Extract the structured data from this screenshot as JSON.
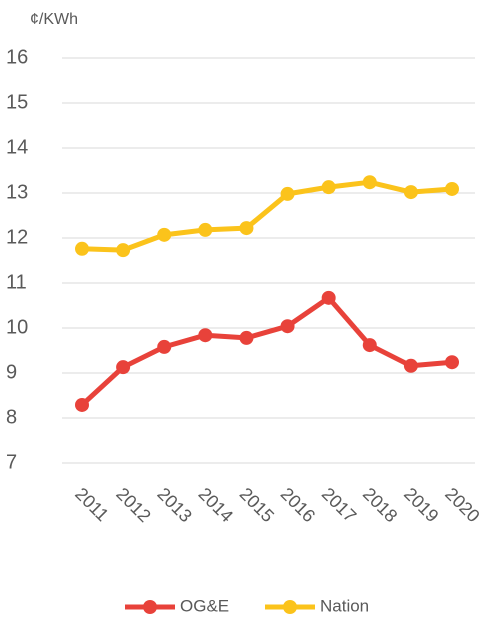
{
  "chart_data": {
    "type": "line",
    "y_label": "¢/KWh",
    "categories": [
      "2011",
      "2012",
      "2013",
      "2014",
      "2015",
      "2016",
      "2017",
      "2018",
      "2019",
      "2020"
    ],
    "series": [
      {
        "name": "OG&E",
        "color": "#e8423a",
        "values": [
          8.29,
          9.13,
          9.58,
          9.84,
          9.78,
          10.04,
          10.67,
          9.62,
          9.16,
          9.24
        ]
      },
      {
        "name": "Nation",
        "color": "#fbc31b",
        "values": [
          11.76,
          11.73,
          12.07,
          12.18,
          12.22,
          12.98,
          13.13,
          13.24,
          13.02,
          13.09
        ]
      }
    ],
    "ylim": [
      7,
      16
    ],
    "yticks": [
      7,
      8,
      9,
      10,
      11,
      12,
      13,
      14,
      15,
      16
    ],
    "grid": true,
    "legend": "bottom"
  }
}
